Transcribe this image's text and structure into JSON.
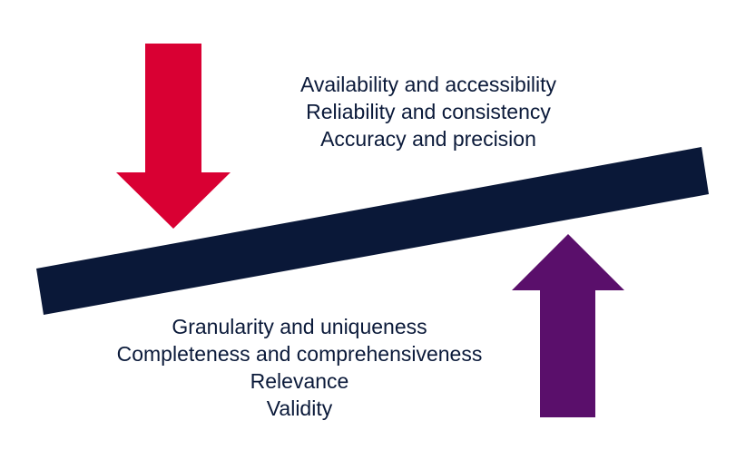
{
  "colors": {
    "down_arrow": "#d90033",
    "up_arrow": "#5a0f6b",
    "beam": "#0a1838",
    "text": "#0b1a3a",
    "background": "#ffffff"
  },
  "icons": {
    "down_arrow": "arrow-down-icon",
    "up_arrow": "arrow-up-icon",
    "beam": "balance-beam"
  },
  "top_text": {
    "lines": [
      "Availability and accessibility",
      "Reliability and consistency",
      "Accuracy and precision"
    ]
  },
  "bottom_text": {
    "lines": [
      "Granularity and uniqueness",
      "Completeness and comprehensiveness",
      "Relevance",
      "Validity"
    ]
  }
}
